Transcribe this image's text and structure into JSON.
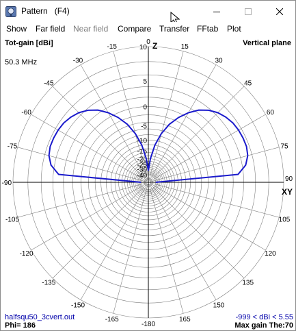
{
  "window": {
    "title": "Pattern",
    "title_suffix": "(F4)",
    "buttons": {
      "minimize": "minimize-icon",
      "maximize": "maximize-icon",
      "close": "close-icon"
    }
  },
  "menu": {
    "items": [
      {
        "label": "Show",
        "enabled": true
      },
      {
        "label": "Far field",
        "enabled": true
      },
      {
        "label": "Near field",
        "enabled": false
      },
      {
        "label": "Compare",
        "enabled": true
      },
      {
        "label": "Transfer",
        "enabled": true
      },
      {
        "label": "FFtab",
        "enabled": true
      },
      {
        "label": "Plot",
        "enabled": true
      }
    ]
  },
  "plot": {
    "top_left": "Tot-gain [dBi]",
    "top_right": "Vertical plane",
    "frequency": "50.3 MHz",
    "axis_z": "Z",
    "axis_xy": "XY",
    "bottom_left_file": "halfsqu50_3cvert.out",
    "bottom_left_phi": "Phi= 186",
    "bottom_right_range": "-999 < dBi < 5.55",
    "bottom_right_maxgain": "Max gain The:70",
    "colors": {
      "trace": "#1a1acc",
      "grid": "#808080",
      "link": "#0000aa"
    }
  },
  "chart_data": {
    "type": "polar",
    "angle_labels": [
      "0",
      "15",
      "30",
      "45",
      "60",
      "75",
      "90",
      "105",
      "120",
      "135",
      "150",
      "165",
      "-180",
      "-165",
      "-150",
      "-135",
      "-120",
      "-105",
      "-90",
      "-75",
      "-60",
      "-45",
      "-30",
      "-15"
    ],
    "radial_labels": [
      "10",
      "5",
      "0",
      "-5",
      "-10",
      "-15",
      "-20",
      "-25",
      "-30",
      "-40"
    ],
    "series": [
      {
        "theta": [
          0,
          5,
          10,
          15,
          20,
          25,
          30,
          35,
          40,
          45,
          50,
          55,
          60,
          65,
          70,
          75,
          80,
          85,
          90
        ],
        "gain_dbi": [
          -32,
          -20,
          -12,
          -7,
          -3.5,
          -1,
          1,
          2.6,
          3.7,
          4.5,
          5.0,
          5.35,
          5.5,
          5.55,
          5.55,
          5.3,
          4.6,
          3.0,
          -40
        ]
      }
    ]
  }
}
